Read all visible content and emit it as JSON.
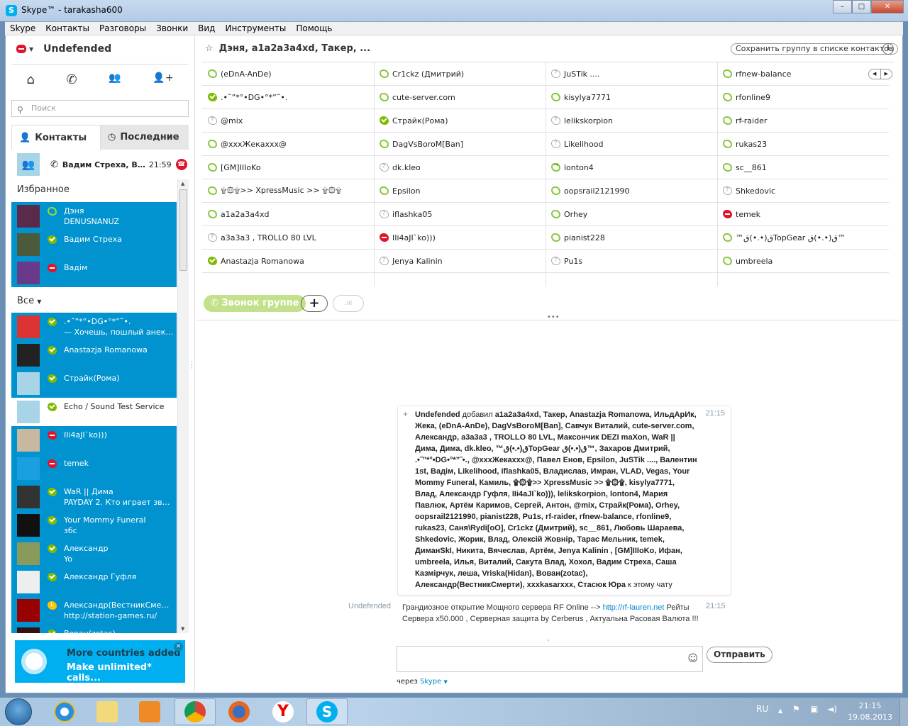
{
  "window": {
    "title": "Skype™ - tarakasha600",
    "minimize": "–",
    "maximize": "□",
    "close": "✕"
  },
  "menu": [
    "Skype",
    "Контакты",
    "Разговоры",
    "Звонки",
    "Вид",
    "Инструменты",
    "Помощь"
  ],
  "profile": {
    "name": "Undefended",
    "status": "dnd"
  },
  "nav": {
    "home": "⌂",
    "call": "✆",
    "group": "👥",
    "add_contact": "👤+"
  },
  "search": {
    "placeholder": "Поиск"
  },
  "tabs": {
    "contacts": "Контакты",
    "recent": "Последние",
    "active": "contacts"
  },
  "active_call": {
    "name": "Вадим Стреха, Ва...",
    "time": "21:59"
  },
  "favorites": {
    "header": "Избранное",
    "items": [
      {
        "name": "Дэня",
        "mood": "DENUSNANUZ",
        "status": "offline",
        "avatar": "#5a2a4a"
      },
      {
        "name": "Вадим Стреха",
        "mood": "",
        "status": "online",
        "avatar": "#4a5a3a"
      },
      {
        "name": "Вадім",
        "mood": "",
        "status": "dnd",
        "avatar": "#6a3a8a"
      }
    ]
  },
  "all": {
    "header": "Все",
    "items": [
      {
        "name": ".•˜”*°•DG•°*”˜•.",
        "mood": "— Хочешь, пошлый анекдо...",
        "status": "online",
        "avatar": "#d33"
      },
      {
        "name": "Anastazja Romanowa",
        "mood": "",
        "status": "online",
        "avatar": "#222"
      },
      {
        "name": "Страйк(Рома)",
        "mood": "",
        "status": "online",
        "avatar": "#a8d4e8"
      },
      {
        "name": "Echo / Sound Test Service",
        "mood": "",
        "status": "online",
        "avatar": "#a8d4e8",
        "selected": true
      },
      {
        "name": "IIi4aJI`ko)))",
        "mood": "",
        "status": "dnd",
        "avatar": "#c8b8a0"
      },
      {
        "name": "temek",
        "mood": "",
        "status": "dnd",
        "avatar": "#1aa0e0"
      },
      {
        "name": "WaR || Дима",
        "mood": "PAYDAY 2. Кто играет звон...",
        "status": "online",
        "avatar": "#333"
      },
      {
        "name": "Your Mommy Funeral",
        "mood": "збс",
        "status": "online",
        "avatar": "#111"
      },
      {
        "name": "Александр",
        "mood": "Yo",
        "status": "online",
        "avatar": "#8a9a5a"
      },
      {
        "name": "Александр Гуфля",
        "mood": "",
        "status": "online",
        "avatar": "#eee"
      },
      {
        "name": "Александр(ВестникСмерти)",
        "mood": "http://station-games.ru/",
        "status": "away",
        "avatar": "#900"
      },
      {
        "name": "Вован(zotac)",
        "mood": "",
        "status": "online",
        "avatar": "#311"
      }
    ]
  },
  "promo": {
    "line1": "More countries added",
    "line2": "Make unlimited* calls...",
    "close": "✕"
  },
  "chat": {
    "title": "Дэня, a1a2a3a4xd, Такер, ...",
    "save_group": "Сохранить группу в списке контактов",
    "info": "i",
    "participants": [
      [
        {
          "name": "(eDnA-AnDe)",
          "status": "offline"
        },
        {
          "name": ".•˜”*°•DG•°*”˜•.",
          "status": "online"
        },
        {
          "name": "@mix",
          "status": "unknown"
        },
        {
          "name": "@xxxЖекаxxx@",
          "status": "offline"
        },
        {
          "name": "[GM]IIIoKo",
          "status": "offline"
        },
        {
          "name": "۩۞۩>> XpressMusic >>  ۩۞۩",
          "status": "offline"
        },
        {
          "name": "a1a2a3a4xd",
          "status": "offline"
        },
        {
          "name": "a3a3a3 , TROLLO 80 LVL",
          "status": "unknown"
        },
        {
          "name": "Anastazja Romanowa",
          "status": "online"
        }
      ],
      [
        {
          "name": "Cr1ckz (Дмитрий)",
          "status": "offline"
        },
        {
          "name": "cute-server.com",
          "status": "offline"
        },
        {
          "name": "Страйк(Рома)",
          "status": "online"
        },
        {
          "name": "DagVsBoroM[Ban]",
          "status": "offline"
        },
        {
          "name": "dk.kleo",
          "status": "unknown"
        },
        {
          "name": "Epsilon",
          "status": "offline"
        },
        {
          "name": "iflashka05",
          "status": "unknown"
        },
        {
          "name": "IIi4aJI`ko)))",
          "status": "dnd"
        },
        {
          "name": "Jenya Kalinin",
          "status": "unknown"
        }
      ],
      [
        {
          "name": "JuSTik ....",
          "status": "unknown"
        },
        {
          "name": "kisylya7771",
          "status": "offline"
        },
        {
          "name": "lelikskorpion",
          "status": "unknown"
        },
        {
          "name": "Likelihood",
          "status": "unknown"
        },
        {
          "name": "lonton4",
          "status": "forward"
        },
        {
          "name": "oopsrail2121990",
          "status": "offline"
        },
        {
          "name": "Orhey",
          "status": "offline"
        },
        {
          "name": "pianist228",
          "status": "offline"
        },
        {
          "name": "Pu1s",
          "status": "unknown"
        }
      ],
      [
        {
          "name": "rfnew-balance",
          "status": "offline"
        },
        {
          "name": "rfonline9",
          "status": "offline"
        },
        {
          "name": "rf-raider",
          "status": "offline"
        },
        {
          "name": "rukas23",
          "status": "offline"
        },
        {
          "name": "sc__861",
          "status": "offline"
        },
        {
          "name": "Shkedovic",
          "status": "unknown"
        },
        {
          "name": "temek",
          "status": "dnd"
        },
        {
          "name": "™ق(•.•)قTopGear ق(•.•)ق™",
          "status": "offline"
        },
        {
          "name": "umbreela",
          "status": "offline"
        }
      ]
    ],
    "call_group": "Звонок группе",
    "add": "+",
    "signal": ".ııl",
    "messages": [
      {
        "sender": "Undefended",
        "action": "добавил",
        "added": "a1a2a3a4xd, Такер, Anastazja Romanowa, ИльдАрИк, Жека, (eDnA-AnDe), DagVsBoroM[Ban], Савчук Виталий, cute-server.com, Александр, a3a3a3 , TROLLO 80 LVL, Максончик DEZI maXon, WaR || Дима, Дима, dk.kleo, ™ق(•.•)قTopGear ق(•.•)ق™, Захаров Дмитрий, .•˜”*°•DG•°*”˜•., @xxxЖекаxxx@, Павел Енов, Epsilon, JuSTik ...., Валентин 1st, Вадім, Likelihood, iflashka05, Владислав, Имран, VLAD, Vegas, Your Mommy Funeral, Камиль, ۩۞۩>> XpressMusic >>  ۩۞۩, kisylya7771, Влад, Александр Гуфля, IIi4aJI`ko))), lelikskorpion, lonton4, Мария Павлюк, Артём Каримов, Сергей, Антон, @mix, Страйк(Рома), Orhey, oopsrail2121990, pianist228, Pu1s, rf-raider, rfnew-balance, rfonline9, rukas23, Саня\\Rydi[oO], Cr1ckz (Дмитрий), sc__861, Любовь Шараева, Shkedovic, Жорик, Влад, Олексій Жовнір, Тарас Мельник, temek, ДиманSkI, Никита, Вячеслав, Артём, Jenya Kalinin , [GM]IIIoKo, Ифан, umbreela, Илья, Виталий, Сакута Влад, Хохол, Вадим Стреха, Саша Казмірчук, леша, Vriska(Hidan), Вован(zotac), Александр(ВестникСмерти), xxxkasarxxx, Стасюк Юра",
        "suffix": "к этому чату",
        "time": "21:15"
      },
      {
        "sender": "Undefended",
        "text_before": "Грандиозное открытие Мощного сервера RF Online -->",
        "link": "http://rf-lauren.net",
        "text_after": "Рейты Сервера x50.000 , Серверная защита by Cerberus , Актуальна Расовая Валюта !!!",
        "time": "21:15"
      }
    ],
    "input": {
      "value": "",
      "send": "Отправить",
      "via_label": "через",
      "via_service": "Skype"
    }
  },
  "taskbar": {
    "lang": "RU",
    "time": "21:15",
    "date": "19.08.2013",
    "apps": [
      "Internet Explorer",
      "Explorer",
      "Media Player",
      "Chrome",
      "Firefox",
      "Yandex",
      "Skype"
    ]
  }
}
